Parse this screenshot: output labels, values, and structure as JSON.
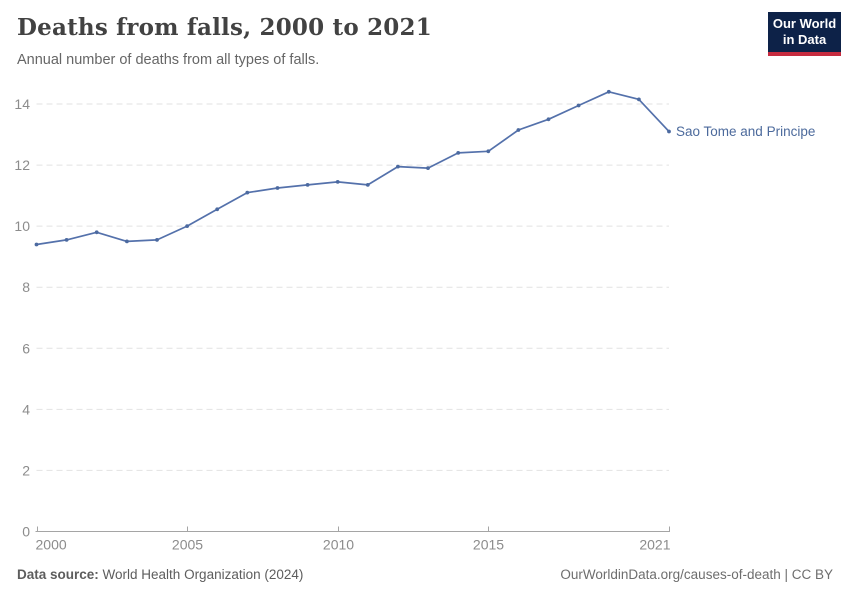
{
  "header": {
    "title": "Deaths from falls, 2000 to 2021",
    "subtitle": "Annual number of deaths from all types of falls.",
    "logo": {
      "line1": "Our World",
      "line2": "in Data"
    }
  },
  "footer": {
    "source_label": "Data source:",
    "source_value": " World Health Organization (2024)",
    "credit": "OurWorldinData.org/causes-of-death | CC BY"
  },
  "colors": {
    "line": "#5471ab",
    "marker": "#4c6aa0",
    "entity_label": "#4c6a9c",
    "grid": "#e2e2e2",
    "axis": "#a5a5a5",
    "tick_label": "#8c8c8c",
    "logo_bg": "#0d2248",
    "logo_red": "#c62b3f"
  },
  "chart_data": {
    "type": "line",
    "title": "Deaths from falls, 2000 to 2021",
    "subtitle": "Annual number of deaths from all types of falls.",
    "x": [
      2000,
      2001,
      2002,
      2003,
      2004,
      2005,
      2006,
      2007,
      2008,
      2009,
      2010,
      2011,
      2012,
      2013,
      2014,
      2015,
      2016,
      2017,
      2018,
      2019,
      2020,
      2021
    ],
    "series": [
      {
        "name": "Sao Tome and Principe",
        "values": [
          9.4,
          9.55,
          9.8,
          9.5,
          9.55,
          10.0,
          10.55,
          11.1,
          11.25,
          11.35,
          11.45,
          11.35,
          11.95,
          11.9,
          12.4,
          12.45,
          13.15,
          13.5,
          13.95,
          14.4,
          14.15,
          13.1
        ]
      }
    ],
    "xlabel": "",
    "ylabel": "",
    "xlim": [
      2000,
      2021
    ],
    "ylim": [
      0,
      14
    ],
    "yticks": [
      0,
      2,
      4,
      6,
      8,
      10,
      12,
      14
    ],
    "xticks": [
      2000,
      2005,
      2010,
      2015,
      2021
    ],
    "grid": "horizontal-dashed",
    "legend_position": "end-of-line"
  }
}
